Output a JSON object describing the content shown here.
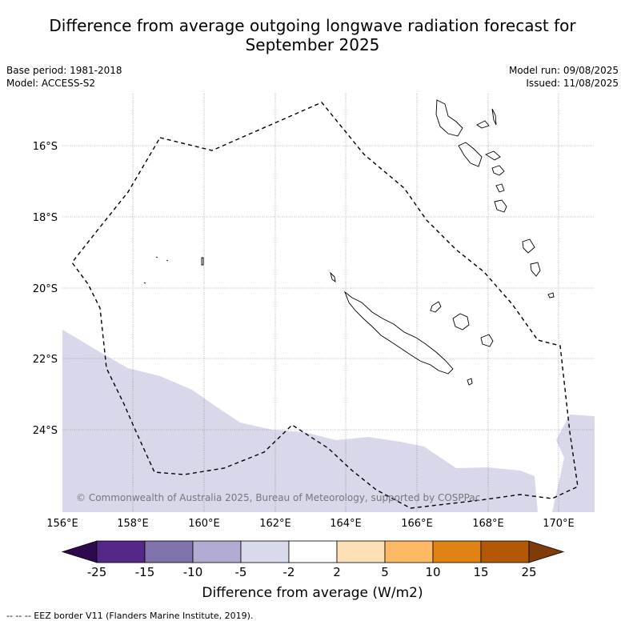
{
  "title": {
    "line1": "Difference from average outgoing longwave radiation forecast for",
    "line2": "September 2025"
  },
  "meta_left": {
    "base_period": "Base period: 1981-2018",
    "model": "Model: ACCESS-S2"
  },
  "meta_right": {
    "model_run": "Model run: 09/08/2025",
    "issued": "Issued: 11/08/2025"
  },
  "map": {
    "lon_ticks": [
      "156°E",
      "158°E",
      "160°E",
      "162°E",
      "164°E",
      "166°E",
      "168°E",
      "170°E"
    ],
    "lat_ticks": [
      "16°S",
      "18°S",
      "20°S",
      "22°S",
      "24°S"
    ],
    "copyright": "© Commonwealth of Australia 2025, Bureau of Meteorology, supported by COSPPac",
    "anomaly_fill_color": "#d8d8ea"
  },
  "colorbar": {
    "ticks": [
      "-25",
      "-15",
      "-10",
      "-5",
      "-2",
      "2",
      "5",
      "10",
      "15",
      "25"
    ],
    "colors": [
      "#2d0a4e",
      "#542788",
      "#8073ac",
      "#b2abd2",
      "#d8daeb",
      "#ffffff",
      "#fee0b6",
      "#fdb863",
      "#e08214",
      "#b35806",
      "#7f3b08"
    ],
    "label": "Difference from average (W/m2)"
  },
  "footnote": "--  --  -- EEZ border V11 (Flanders Marine Institute, 2019)."
}
